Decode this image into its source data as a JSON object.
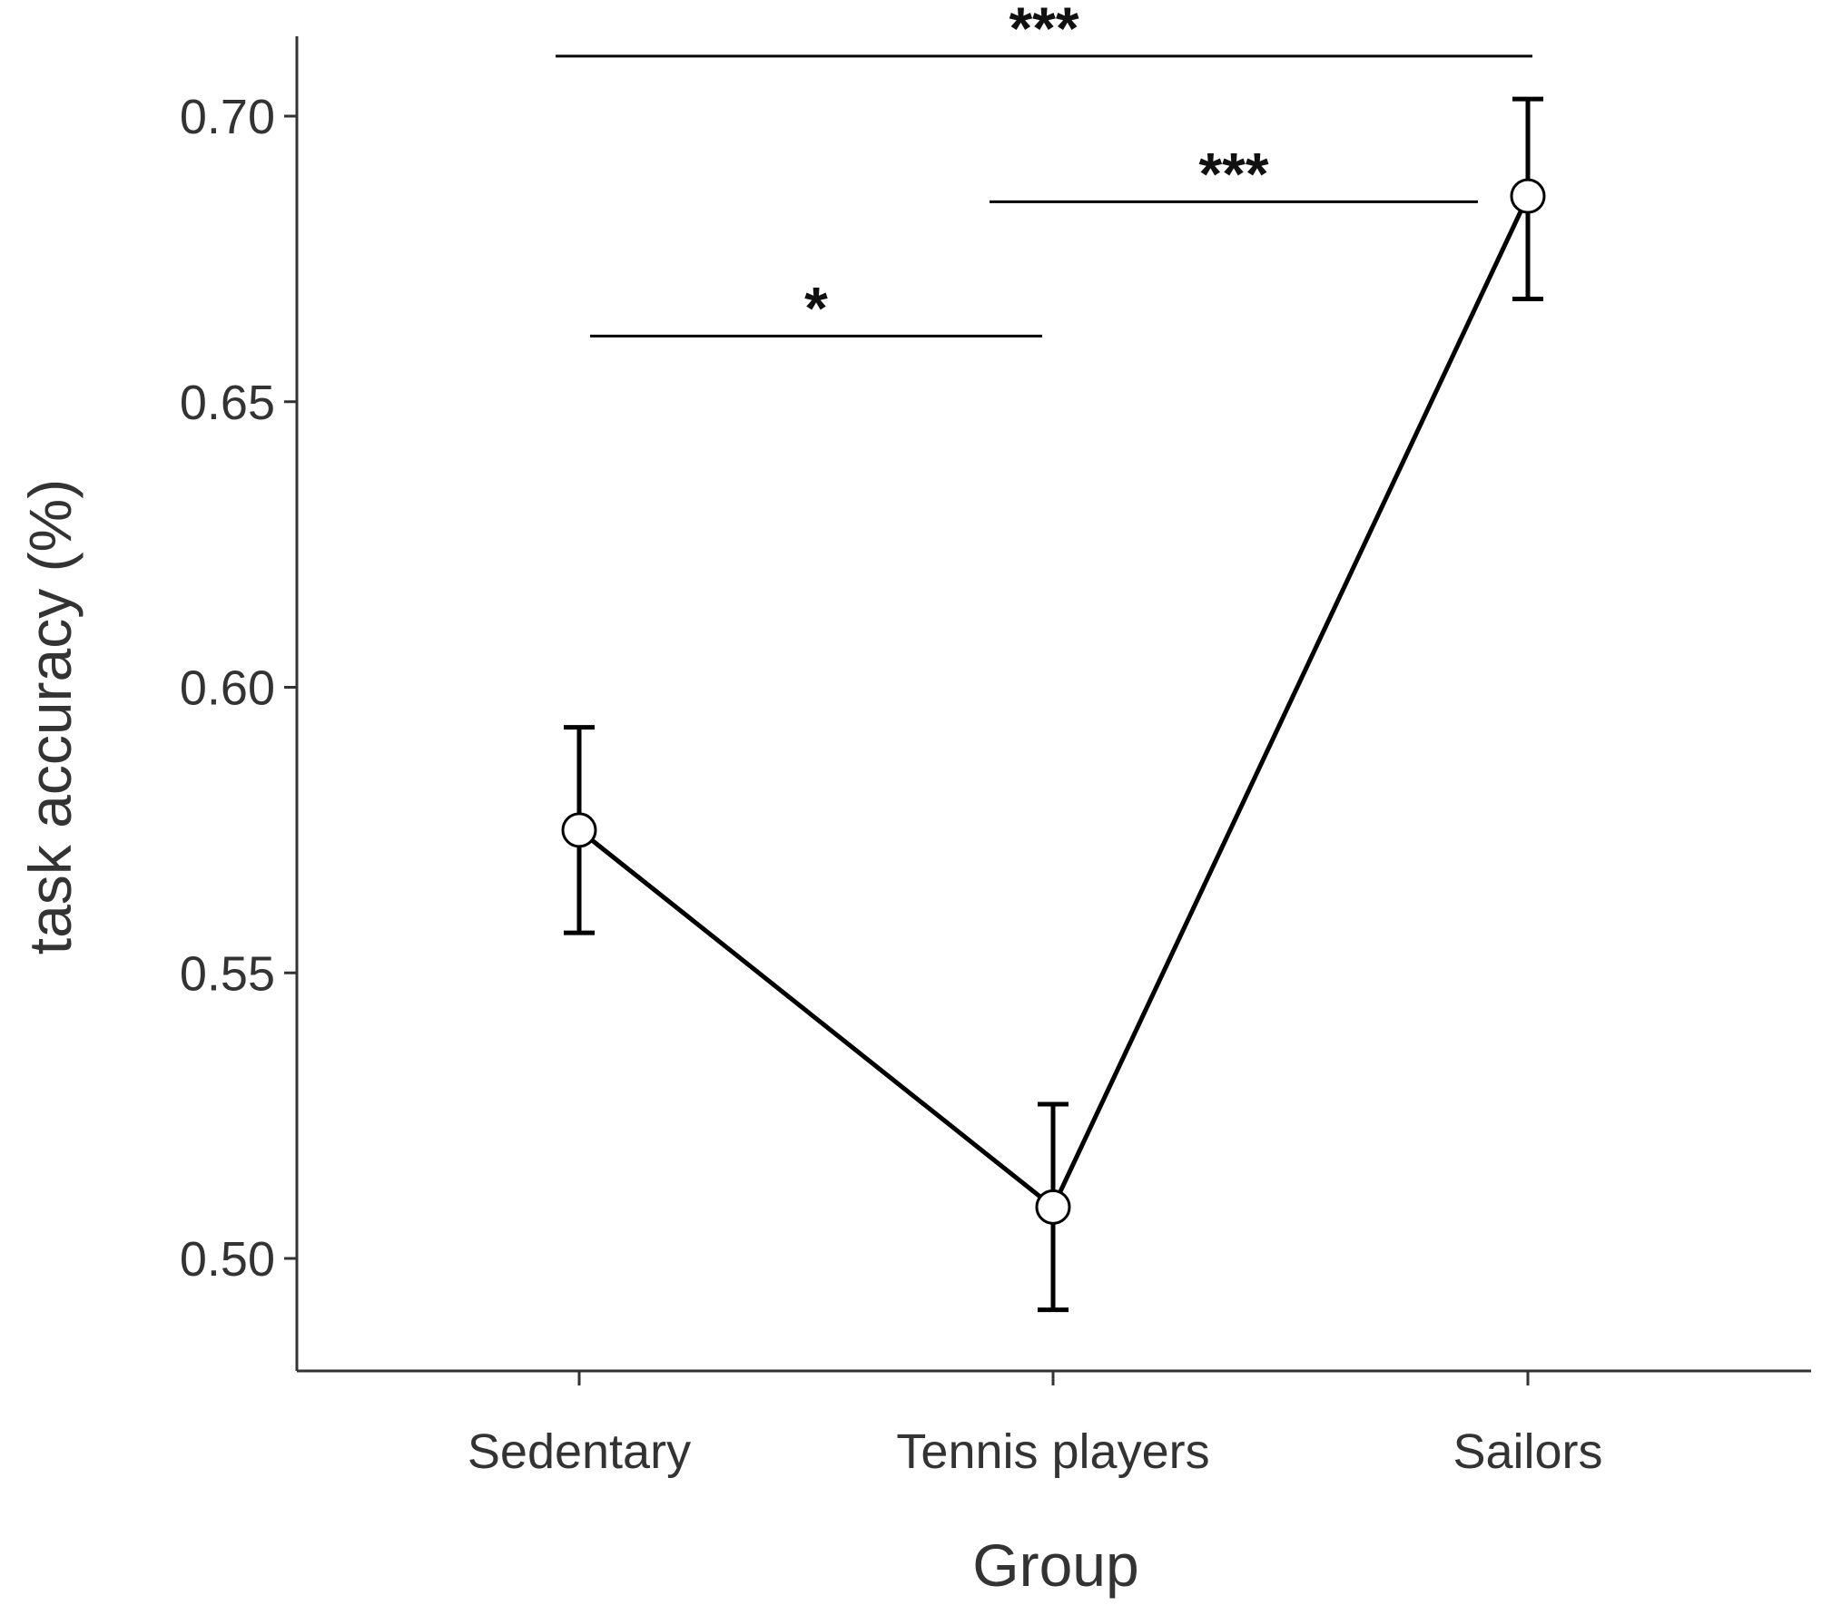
{
  "chart_data": {
    "type": "line",
    "title": "",
    "xlabel": "Group",
    "ylabel": "task accuracy (%)",
    "categories": [
      "Sedentary",
      "Tennis players",
      "Sailors"
    ],
    "values": [
      0.575,
      0.509,
      0.686
    ],
    "error_low": [
      0.557,
      0.491,
      0.668
    ],
    "error_high": [
      0.593,
      0.527,
      0.703
    ],
    "ylim": [
      0.48,
      0.715
    ],
    "yticks": [
      0.5,
      0.55,
      0.6,
      0.65,
      0.7
    ],
    "ytick_labels": [
      "0.50",
      "0.55",
      "0.60",
      "0.65",
      "0.70"
    ],
    "grid": false,
    "significance": [
      {
        "from": "Sedentary",
        "to": "Tennis players",
        "label": "*",
        "y": 0.6615
      },
      {
        "from": "Tennis players",
        "to": "Sailors",
        "label": "***",
        "y": 0.685
      },
      {
        "from": "Sedentary",
        "to": "Sailors",
        "label": "***",
        "y": 0.7105
      }
    ],
    "colors": {
      "line": "#000000",
      "marker_fill": "#ffffff",
      "axis": "#333333",
      "text": "#333333"
    }
  }
}
